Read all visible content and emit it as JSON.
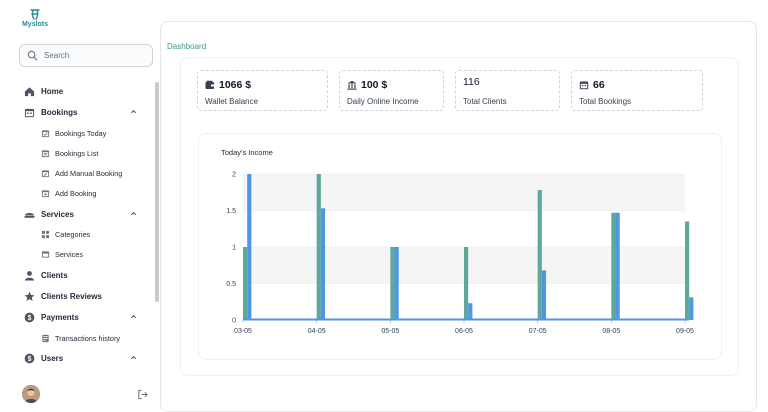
{
  "app": {
    "logo_text": "Myslots"
  },
  "search": {
    "placeholder": "Search"
  },
  "sidebar": {
    "items": [
      {
        "label": "Home",
        "icon": "home-icon"
      },
      {
        "label": "Bookings",
        "icon": "calendar-icon",
        "expanded": true,
        "children": [
          {
            "label": "Bookings Today",
            "icon": "calendar-check-icon"
          },
          {
            "label": "Bookings List",
            "icon": "calendar-list-icon"
          },
          {
            "label": "Add Manual Booking",
            "icon": "calendar-edit-icon"
          },
          {
            "label": "Add Booking",
            "icon": "calendar-plus-icon"
          }
        ]
      },
      {
        "label": "Services",
        "icon": "services-icon",
        "expanded": true,
        "children": [
          {
            "label": "Categories",
            "icon": "categories-icon"
          },
          {
            "label": "Services",
            "icon": "service-card-icon"
          }
        ]
      },
      {
        "label": "Clients",
        "icon": "user-icon"
      },
      {
        "label": "Clients Reviews",
        "icon": "star-icon"
      },
      {
        "label": "Payments",
        "icon": "dollar-icon",
        "expanded": true,
        "children": [
          {
            "label": "Transactions history",
            "icon": "receipt-icon"
          }
        ]
      },
      {
        "label": "Users",
        "icon": "users-icon",
        "expanded": true
      }
    ]
  },
  "breadcrumb": "Dashboard",
  "stats": [
    {
      "value": "1066 $",
      "label": "Wallet Balance",
      "icon": "wallet-icon"
    },
    {
      "value": "100 $",
      "label": "Daily Online Income",
      "icon": "bank-icon"
    },
    {
      "value": "116",
      "label": "Total Clients",
      "icon": ""
    },
    {
      "value": "66",
      "label": "Total Bookings",
      "icon": "calendar-icon"
    }
  ],
  "colors": {
    "accent": "#3a9a8f",
    "bar_teal": "#5fa89c",
    "bar_blue": "#4f97e3"
  },
  "chart_data": {
    "type": "bar",
    "title": "Today's Income",
    "categories": [
      "03-05",
      "04-05",
      "05-05",
      "06-05",
      "07-05",
      "08-05",
      "09-05"
    ],
    "yticks": [
      "0",
      "0.5",
      "1",
      "1.5",
      "2"
    ],
    "ylim": [
      0,
      2
    ],
    "series": [
      {
        "values": [
          1.0,
          2.0,
          1.0,
          1.0,
          1.78,
          1.47,
          1.35
        ]
      },
      {
        "values": [
          2.0,
          1.53,
          1.0,
          0.23,
          0.68,
          1.47,
          0.31
        ]
      }
    ],
    "grid": "horizontal bands"
  }
}
